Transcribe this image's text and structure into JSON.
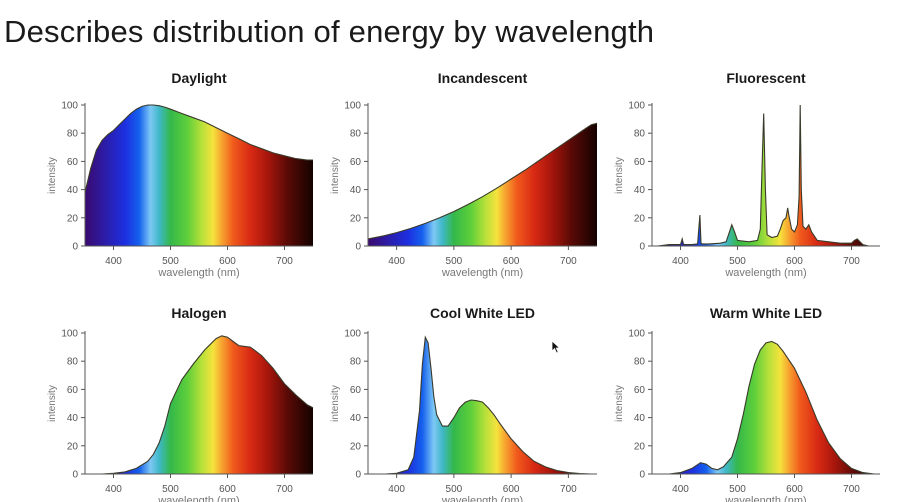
{
  "slide": {
    "title": "Describes distribution of energy by wavelength"
  },
  "chart_data": [
    {
      "type": "area",
      "title": "Daylight",
      "xlabel": "wavelength (nm)",
      "ylabel": "intensity",
      "xlim": [
        350,
        750
      ],
      "ylim": [
        0,
        100
      ],
      "xticks": [
        400,
        500,
        600,
        700
      ],
      "yticks": [
        0,
        20,
        40,
        60,
        80,
        100
      ],
      "x": [
        350,
        360,
        370,
        380,
        390,
        400,
        410,
        420,
        430,
        440,
        450,
        460,
        470,
        480,
        490,
        500,
        520,
        540,
        560,
        580,
        600,
        620,
        640,
        660,
        680,
        700,
        720,
        740,
        750
      ],
      "y": [
        38,
        55,
        68,
        75,
        79,
        82,
        86,
        90,
        94,
        97,
        99,
        100,
        100,
        99.5,
        98.5,
        97,
        94,
        91,
        88,
        84,
        80,
        76,
        72,
        69,
        66,
        64,
        62,
        61,
        61
      ]
    },
    {
      "type": "area",
      "title": "Incandescent",
      "xlabel": "wavelength (nm)",
      "ylabel": "intensity",
      "xlim": [
        350,
        750
      ],
      "ylim": [
        0,
        100
      ],
      "xticks": [
        400,
        500,
        600,
        700
      ],
      "yticks": [
        0,
        20,
        40,
        60,
        80,
        100
      ],
      "x": [
        350,
        375,
        400,
        425,
        450,
        475,
        500,
        525,
        550,
        575,
        600,
        625,
        650,
        675,
        700,
        725,
        740,
        750
      ],
      "y": [
        5,
        7,
        9.5,
        12.5,
        16,
        20,
        24.5,
        29.5,
        35,
        41,
        47.5,
        54,
        61,
        68,
        75,
        82,
        86,
        87
      ]
    },
    {
      "type": "area",
      "title": "Fluorescent",
      "xlabel": "wavelength (nm)",
      "ylabel": "intensity",
      "xlim": [
        350,
        750
      ],
      "ylim": [
        0,
        100
      ],
      "xticks": [
        400,
        500,
        600,
        700
      ],
      "yticks": [
        0,
        20,
        40,
        60,
        80,
        100
      ],
      "x": [
        360,
        380,
        400,
        403,
        405,
        407,
        420,
        430,
        434,
        436,
        438,
        450,
        470,
        480,
        485,
        490,
        495,
        500,
        520,
        535,
        540,
        543,
        546,
        549,
        552,
        560,
        570,
        575,
        580,
        585,
        588,
        590,
        595,
        600,
        605,
        608,
        610,
        612,
        615,
        620,
        625,
        630,
        640,
        660,
        680,
        700,
        705,
        710,
        715,
        720,
        730
      ],
      "y": [
        0,
        1,
        1,
        5,
        1.5,
        1,
        1,
        1.5,
        22,
        2,
        1.5,
        1.5,
        2,
        3,
        9,
        15,
        10,
        4,
        3,
        4,
        12,
        55,
        94,
        40,
        8,
        6,
        7,
        12,
        18,
        20,
        27,
        22,
        12,
        10,
        15,
        35,
        100,
        40,
        14,
        12,
        15,
        10,
        4,
        3,
        2,
        2,
        4,
        5,
        3,
        1,
        0
      ]
    },
    {
      "type": "area",
      "title": "Halogen",
      "xlabel": "wavelength (nm)",
      "ylabel": "intensity",
      "xlim": [
        350,
        750
      ],
      "ylim": [
        0,
        100
      ],
      "xticks": [
        400,
        500,
        600,
        700
      ],
      "yticks": [
        0,
        20,
        40,
        60,
        80,
        100
      ],
      "x": [
        380,
        400,
        420,
        440,
        460,
        470,
        480,
        490,
        500,
        520,
        540,
        560,
        580,
        590,
        600,
        610,
        620,
        640,
        660,
        680,
        700,
        720,
        740,
        750
      ],
      "y": [
        0,
        0.5,
        1.5,
        4,
        9,
        14,
        22,
        34,
        50,
        67,
        78,
        88,
        96,
        98,
        97,
        94,
        91,
        90,
        84,
        75,
        64,
        56,
        49,
        47
      ]
    },
    {
      "type": "area",
      "title": "Cool White LED",
      "xlabel": "wavelength (nm)",
      "ylabel": "intensity",
      "xlim": [
        350,
        750
      ],
      "ylim": [
        0,
        100
      ],
      "xticks": [
        400,
        500,
        600,
        700
      ],
      "yticks": [
        0,
        20,
        40,
        60,
        80,
        100
      ],
      "x": [
        380,
        400,
        420,
        430,
        440,
        445,
        450,
        455,
        460,
        465,
        470,
        480,
        490,
        500,
        510,
        520,
        530,
        540,
        550,
        560,
        570,
        580,
        600,
        620,
        640,
        660,
        680,
        700,
        720,
        740
      ],
      "y": [
        0,
        0.5,
        3,
        12,
        45,
        78,
        97,
        93,
        75,
        55,
        42,
        34,
        34,
        40,
        47,
        51,
        52.5,
        52,
        51,
        47,
        42,
        36,
        25,
        16,
        9,
        5,
        2.5,
        1,
        0.3,
        0
      ]
    },
    {
      "type": "area",
      "title": "Warm White LED",
      "xlabel": "wavelength (nm)",
      "ylabel": "intensity",
      "xlim": [
        350,
        750
      ],
      "ylim": [
        0,
        100
      ],
      "xticks": [
        400,
        500,
        600,
        700
      ],
      "yticks": [
        0,
        20,
        40,
        60,
        80,
        100
      ],
      "x": [
        380,
        400,
        420,
        435,
        445,
        455,
        465,
        475,
        490,
        500,
        510,
        520,
        530,
        540,
        550,
        560,
        570,
        580,
        600,
        620,
        640,
        660,
        680,
        700,
        720,
        740
      ],
      "y": [
        0,
        1,
        4,
        8,
        7,
        4,
        3,
        5,
        12,
        25,
        42,
        62,
        78,
        88,
        93,
        94,
        92,
        87,
        75,
        58,
        38,
        22,
        11,
        4,
        1,
        0
      ]
    }
  ]
}
